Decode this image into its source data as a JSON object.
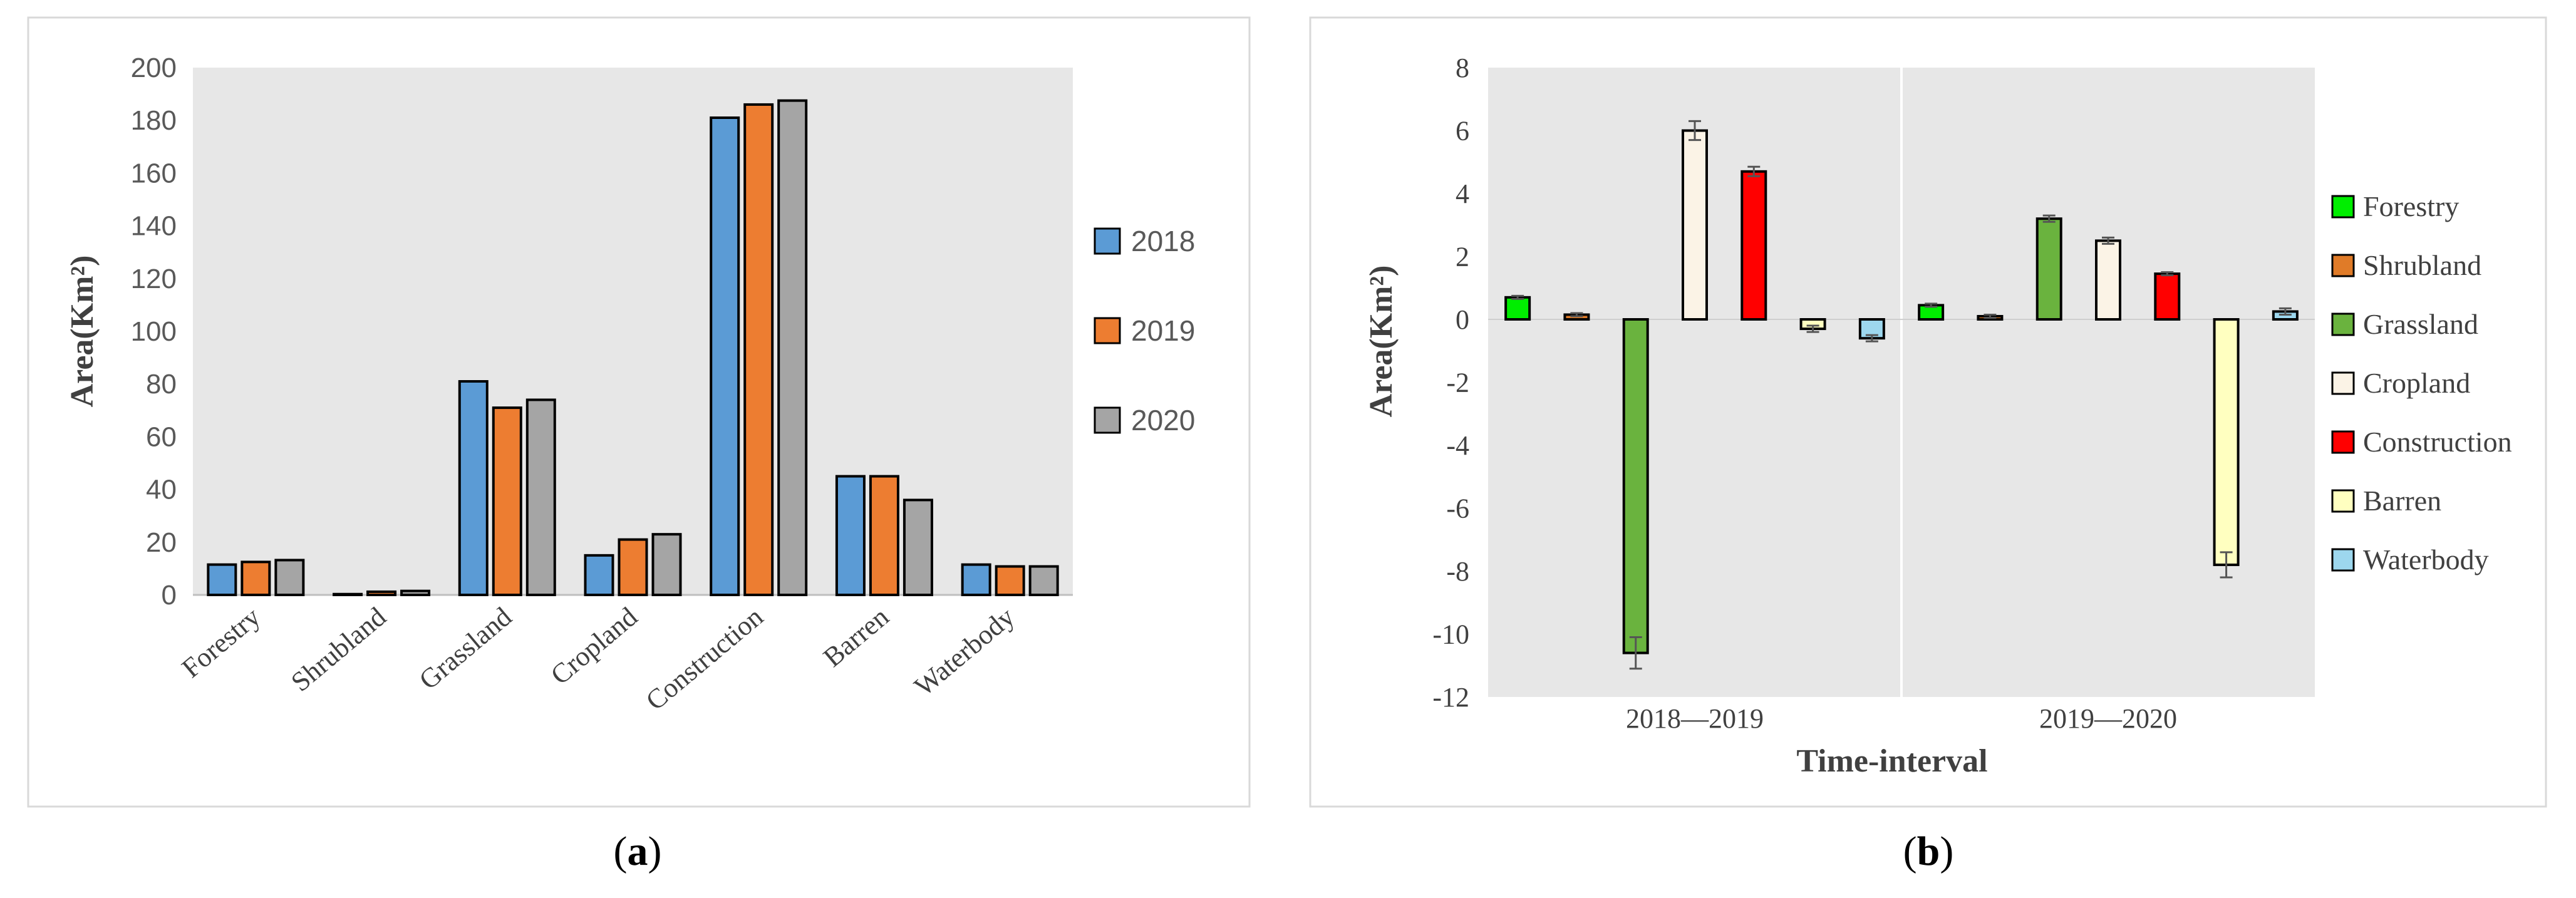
{
  "chart_data": [
    {
      "type": "bar",
      "panel_label": "(a)",
      "panel_letter": "a",
      "ylabel": "Area(Km²)",
      "xlabel": "",
      "ylim": [
        0,
        200
      ],
      "yticks": [
        0,
        20,
        40,
        60,
        80,
        100,
        120,
        140,
        160,
        180,
        200
      ],
      "grid": false,
      "legend_position": "right",
      "categories": [
        "Forestry",
        "Shrubland",
        "Grassland",
        "Cropland",
        "Construction",
        "Barren",
        "Waterbody"
      ],
      "series": [
        {
          "name": "2018",
          "color": "#5b9bd5",
          "values": [
            11.5,
            0.3,
            81,
            15,
            181,
            45,
            11.5
          ]
        },
        {
          "name": "2019",
          "color": "#ed7d31",
          "values": [
            12.5,
            1.2,
            71,
            21,
            186,
            45,
            10.8
          ]
        },
        {
          "name": "2020",
          "color": "#a5a5a5",
          "values": [
            13.2,
            1.5,
            74,
            23,
            187.5,
            36,
            10.8
          ]
        }
      ]
    },
    {
      "type": "bar",
      "panel_label": "(b)",
      "panel_letter": "b",
      "ylabel": "Area(Km²)",
      "xlabel": "Time-interval",
      "ylim": [
        -12,
        8
      ],
      "yticks": [
        -12,
        -10,
        -8,
        -6,
        -4,
        -2,
        0,
        2,
        4,
        6,
        8
      ],
      "grid": false,
      "legend_position": "right",
      "categories": [
        "2018—2019",
        "2019—2020"
      ],
      "series": [
        {
          "name": "Forestry",
          "color": "#00ee00",
          "values": [
            0.7,
            0.45
          ],
          "errors": [
            0.05,
            0.05
          ]
        },
        {
          "name": "Shrubland",
          "color": "#e07b28",
          "values": [
            0.15,
            0.1
          ],
          "errors": [
            0.05,
            0.05
          ]
        },
        {
          "name": "Grassland",
          "color": "#6ab33e",
          "values": [
            -10.6,
            3.2
          ],
          "errors": [
            0.5,
            0.1
          ]
        },
        {
          "name": "Cropland",
          "color": "#fbf3e6",
          "values": [
            6.0,
            2.5
          ],
          "errors": [
            0.3,
            0.1
          ]
        },
        {
          "name": "Construction",
          "color": "#ff0000",
          "values": [
            4.7,
            1.45
          ],
          "errors": [
            0.15,
            0.05
          ]
        },
        {
          "name": "Barren",
          "color": "#ffffc0",
          "values": [
            -0.3,
            -7.8
          ],
          "errors": [
            0.1,
            0.4
          ]
        },
        {
          "name": "Waterbody",
          "color": "#9dd7ee",
          "values": [
            -0.6,
            0.25
          ],
          "errors": [
            0.1,
            0.1
          ]
        }
      ]
    }
  ]
}
